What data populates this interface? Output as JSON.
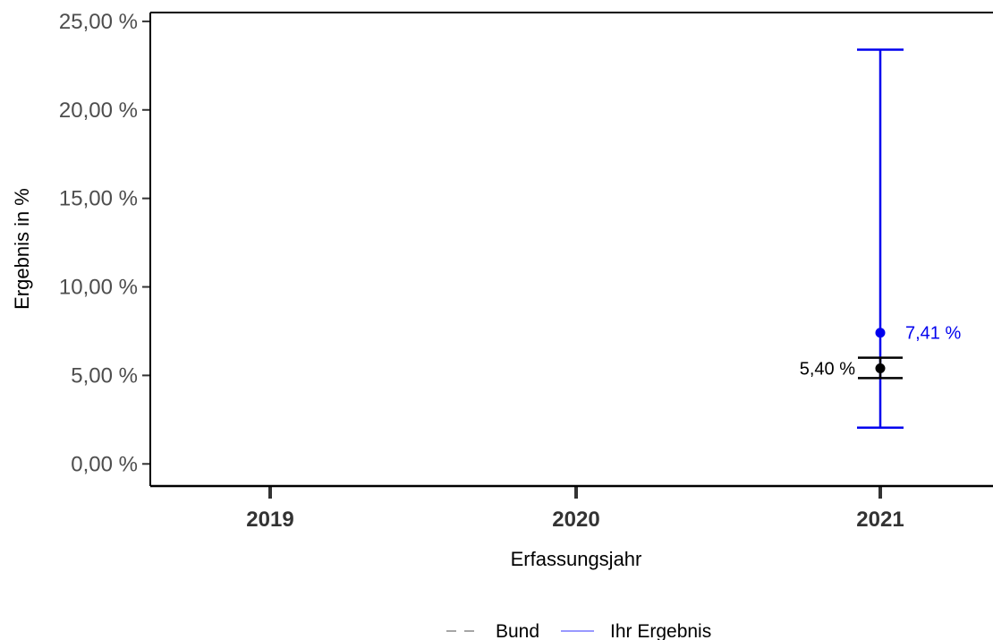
{
  "chart_data": {
    "type": "scatter",
    "title": "",
    "xlabel": "Erfassungsjahr",
    "ylabel": "Ergebnis in %",
    "categories": [
      "2019",
      "2020",
      "2021"
    ],
    "ylim": [
      -1.25,
      25.5
    ],
    "y_ticks": [
      0,
      5,
      10,
      15,
      20,
      25
    ],
    "y_tick_labels": [
      "0,00 %",
      "5,00 %",
      "10,00 %",
      "15,00 %",
      "20,00 %",
      "25,00 %"
    ],
    "grid": false,
    "legend_position": "bottom",
    "legend": [
      {
        "label": "Bund",
        "style": "dashed",
        "color": "#a6a6a6"
      },
      {
        "label": "Ihr Ergebnis",
        "style": "solid",
        "color": "#9999ff"
      }
    ],
    "series": [
      {
        "name": "Bund",
        "color": "#000000",
        "points": [
          {
            "x": "2021",
            "value": 5.4,
            "lower": 4.85,
            "upper": 6.0,
            "label": "5,40 %"
          }
        ]
      },
      {
        "name": "Ihr Ergebnis",
        "color": "#0000ee",
        "points": [
          {
            "x": "2021",
            "value": 7.41,
            "lower": 2.05,
            "upper": 23.4,
            "label": "7,41 %"
          }
        ]
      }
    ]
  }
}
